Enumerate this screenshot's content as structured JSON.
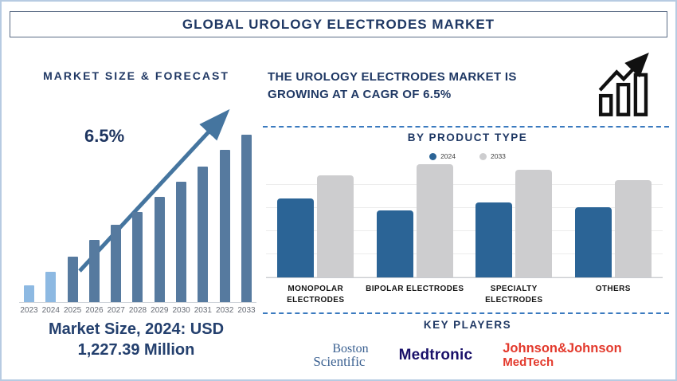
{
  "page": {
    "title": "GLOBAL UROLOGY ELECTRODES MARKET"
  },
  "colors": {
    "navy_text": "#1f3864",
    "forecast_bar": "#567a9f",
    "historical_bar": "#8db9e2",
    "trend_arrow": "#45759f",
    "blue_2024": "#2b6496",
    "gray_2033": "#cdcdcf",
    "dashed_divider": "#3a7abf",
    "frame_border": "#b7cbe2",
    "jnj_red": "#e3392c",
    "medtronic_navy": "#191069",
    "boston_scientific_blue": "#3b6191"
  },
  "left_panel": {
    "heading": "MARKET SIZE & FORECAST",
    "cagr_annotation": "6.5%",
    "market_size_line1": "Market Size, 2024: USD",
    "market_size_line2": "1,227.39 Million"
  },
  "right_panel": {
    "headline_line1": "THE UROLOGY ELECTRODES MARKET IS",
    "headline_line2": "GROWING AT A CAGR OF 6.5%",
    "growth_icon": "bar-chart-with-rising-arrow-icon",
    "product_section_title": "BY PRODUCT TYPE",
    "legend": [
      {
        "label": "2024",
        "color": "#2b6496"
      },
      {
        "label": "2033",
        "color": "#cdcdcf"
      }
    ],
    "key_players_title": "KEY PLAYERS",
    "key_players": [
      {
        "name": "Boston Scientific",
        "logo_line1": "Boston",
        "logo_line2": "Scientific"
      },
      {
        "name": "Medtronic",
        "logo_text": "Medtronic"
      },
      {
        "name": "Johnson & Johnson MedTech",
        "logo_line1": "Johnson&Johnson",
        "logo_line2": "MedTech"
      }
    ]
  },
  "chart_data": [
    {
      "type": "bar",
      "title": "MARKET SIZE & FORECAST",
      "categories": [
        "2023",
        "2024",
        "2025",
        "2026",
        "2027",
        "2028",
        "2029",
        "2030",
        "2031",
        "2032",
        "2033"
      ],
      "values": [
        10,
        18,
        27,
        37,
        46,
        54,
        63,
        72,
        81,
        91,
        100
      ],
      "units": "relative height, unlabeled axis (2033 = 100)",
      "known_point": {
        "year": "2024",
        "value": 1227.39,
        "units": "USD Million"
      },
      "cagr": "6.5%",
      "annotation": "6.5%",
      "bar_color": "#567a9f",
      "highlight_color": "#8db9e2",
      "highlight_years": [
        "2023",
        "2024"
      ],
      "xlabel": "",
      "ylabel": "",
      "grid": false,
      "legend_position": "none"
    },
    {
      "type": "bar",
      "title": "BY PRODUCT TYPE",
      "categories": [
        "MONOPOLAR ELECTRODES",
        "BIPOLAR ELECTRODES",
        "SPECIALTY ELECTRODES",
        "OTHERS"
      ],
      "category_lines": [
        [
          "MONOPOLAR",
          "ELECTRODES"
        ],
        [
          "BIPOLAR ELECTRODES"
        ],
        [
          "SPECIALTY",
          "ELECTRODES"
        ],
        [
          "OTHERS"
        ]
      ],
      "series": [
        {
          "name": "2024",
          "color": "#2b6496",
          "values": [
            70,
            59,
            66,
            62
          ]
        },
        {
          "name": "2033",
          "color": "#cdcdcf",
          "values": [
            90,
            100,
            95,
            86
          ]
        }
      ],
      "units": "relative height, unlabeled axis (Bipolar 2033 = 100)",
      "xlabel": "",
      "ylabel": "",
      "grid": true,
      "legend_position": "top-center"
    }
  ]
}
